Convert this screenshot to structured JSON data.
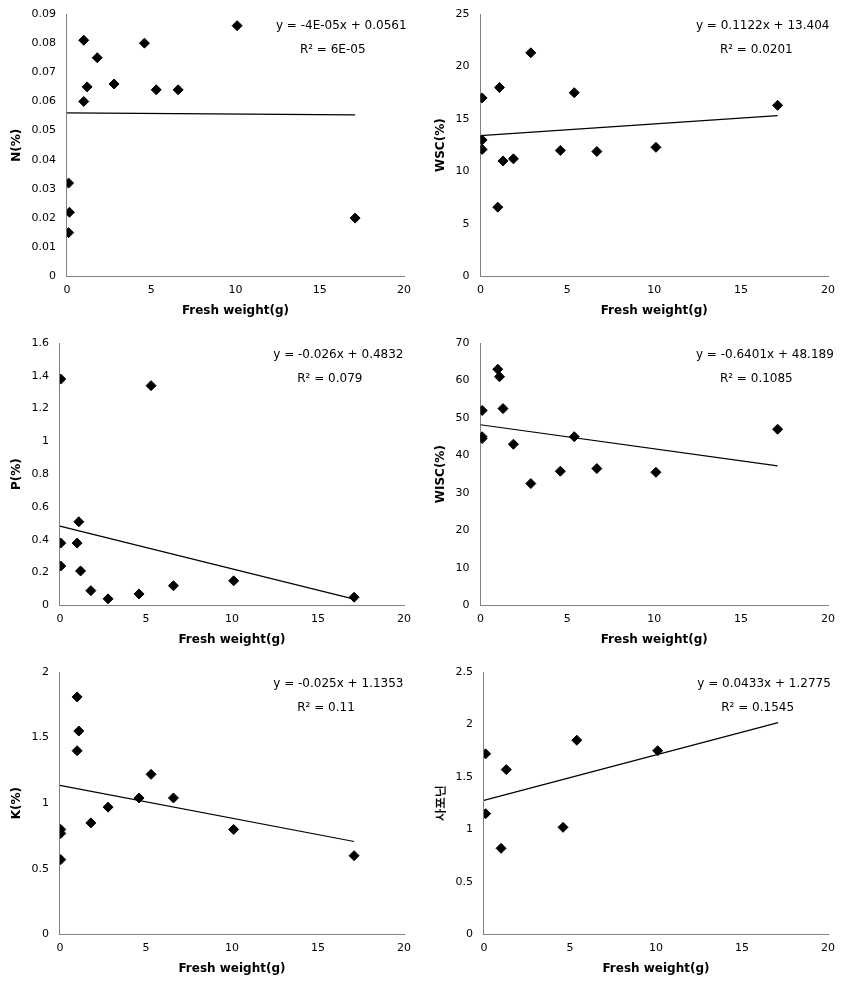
{
  "chart_data": [
    {
      "type": "scatter",
      "x_label": "Fresh weight(g)",
      "y_label": "N(%)",
      "x": [
        0.1,
        0.15,
        0.1,
        1.0,
        1.0,
        1.2,
        1.8,
        2.8,
        4.6,
        5.3,
        6.6,
        10.1,
        17.1
      ],
      "values": [
        0.015,
        0.022,
        0.032,
        0.06,
        0.081,
        0.065,
        0.075,
        0.066,
        0.08,
        0.064,
        0.064,
        0.086,
        0.02
      ],
      "xlim": [
        0,
        20
      ],
      "xticks": [
        0,
        5,
        10,
        15,
        20
      ],
      "ylim": [
        0,
        0.09
      ],
      "yticks": [
        0,
        0.01,
        0.02,
        0.03,
        0.04,
        0.05,
        0.06,
        0.07,
        0.08,
        0.09
      ],
      "trendline": {
        "x": [
          0,
          17.1
        ],
        "y": [
          0.0561,
          0.0554
        ]
      },
      "annotations": [
        "y = -4E-05x + 0.0561",
        "R² = 6E-05"
      ],
      "color": "#000000",
      "marker": "diamond",
      "grid": false
    },
    {
      "type": "scatter",
      "x_label": "Fresh weight(g)",
      "y_label": "WSC(%)",
      "x": [
        0.1,
        0.1,
        0.1,
        1.0,
        1.1,
        1.3,
        1.9,
        2.9,
        4.6,
        5.4,
        6.7,
        10.1,
        17.1
      ],
      "values": [
        17.0,
        12.1,
        13.0,
        6.6,
        18.0,
        11.0,
        11.2,
        21.3,
        12.0,
        17.5,
        11.9,
        12.3,
        16.3
      ],
      "xlim": [
        0,
        20
      ],
      "xticks": [
        0,
        5,
        10,
        15,
        20
      ],
      "ylim": [
        0,
        25
      ],
      "yticks": [
        0,
        5,
        10,
        15,
        20,
        25
      ],
      "trendline": {
        "x": [
          0,
          17.1
        ],
        "y": [
          13.404,
          15.32
        ]
      },
      "annotations": [
        "y = 0.1122x + 13.404",
        "R² = 0.0201"
      ],
      "color": "#000000",
      "marker": "diamond",
      "grid": false
    },
    {
      "type": "scatter",
      "x_label": "Fresh weight(g)",
      "y_label": "P(%)",
      "x": [
        0.05,
        0.05,
        0.05,
        1.0,
        1.1,
        1.2,
        1.8,
        2.8,
        4.6,
        5.3,
        6.6,
        10.1,
        17.1
      ],
      "values": [
        1.38,
        0.38,
        0.24,
        0.38,
        0.51,
        0.21,
        0.09,
        0.04,
        0.07,
        1.34,
        0.12,
        0.15,
        0.05
      ],
      "xlim": [
        0,
        20
      ],
      "xticks": [
        0,
        5,
        10,
        15,
        20
      ],
      "ylim": [
        0,
        1.6
      ],
      "yticks": [
        0,
        0.2,
        0.4,
        0.6,
        0.8,
        1,
        1.2,
        1.4,
        1.6
      ],
      "trendline": {
        "x": [
          0,
          17.1
        ],
        "y": [
          0.4832,
          0.0386
        ]
      },
      "annotations": [
        "y = -0.026x + 0.4832",
        "R² = 0.079"
      ],
      "color": "#000000",
      "marker": "diamond",
      "grid": false
    },
    {
      "type": "scatter",
      "x_label": "Fresh weight(g)",
      "y_label": "WISC(%)",
      "x": [
        0.1,
        0.1,
        0.1,
        1.0,
        1.1,
        1.3,
        1.9,
        2.9,
        4.6,
        5.4,
        6.7,
        10.1,
        17.1
      ],
      "values": [
        52,
        45,
        44.5,
        63,
        61,
        52.5,
        43,
        32.5,
        35.8,
        45,
        36.5,
        35.5,
        47
      ],
      "xlim": [
        0,
        20
      ],
      "xticks": [
        0,
        5,
        10,
        15,
        20
      ],
      "ylim": [
        0,
        70
      ],
      "yticks": [
        0,
        10,
        20,
        30,
        40,
        50,
        60,
        70
      ],
      "trendline": {
        "x": [
          0,
          17.1
        ],
        "y": [
          48.189,
          37.24
        ]
      },
      "annotations": [
        "y = -0.6401x + 48.189",
        "R² = 0.1085"
      ],
      "color": "#000000",
      "marker": "diamond",
      "grid": false
    },
    {
      "type": "scatter",
      "x_label": "Fresh weight(g)",
      "y_label": "K(%)",
      "x": [
        0.05,
        0.05,
        0.05,
        1.0,
        1.1,
        1.0,
        1.8,
        2.8,
        4.6,
        5.3,
        6.6,
        10.1,
        17.1
      ],
      "values": [
        0.8,
        0.77,
        0.57,
        1.81,
        1.55,
        1.4,
        0.85,
        0.97,
        1.04,
        1.22,
        1.04,
        0.8,
        0.6
      ],
      "xlim": [
        0,
        20
      ],
      "xticks": [
        0,
        5,
        10,
        15,
        20
      ],
      "ylim": [
        0,
        2
      ],
      "yticks": [
        0,
        0.5,
        1,
        1.5,
        2
      ],
      "trendline": {
        "x": [
          0,
          17.1
        ],
        "y": [
          1.1353,
          0.708
        ]
      },
      "annotations": [
        "y = -0.025x + 1.1353",
        "R² = 0.11"
      ],
      "color": "#000000",
      "marker": "diamond",
      "grid": false
    },
    {
      "type": "scatter",
      "x_label": "Fresh weight(g)",
      "y_label": "사포닌",
      "x": [
        0.1,
        0.1,
        1.0,
        1.3,
        4.6,
        5.4,
        10.1
      ],
      "values": [
        1.72,
        1.15,
        0.82,
        1.57,
        1.02,
        1.85,
        1.75
      ],
      "xlim": [
        0,
        20
      ],
      "xticks": [
        0,
        5,
        10,
        15,
        20
      ],
      "ylim": [
        0,
        2.5
      ],
      "yticks": [
        0,
        0.5,
        1,
        1.5,
        2,
        2.5
      ],
      "trendline": {
        "x": [
          0,
          17.1
        ],
        "y": [
          1.2775,
          2.018
        ]
      },
      "annotations": [
        "y = 0.0433x + 1.2775",
        "R² = 0.1545"
      ],
      "color": "#000000",
      "marker": "diamond",
      "grid": false
    }
  ]
}
